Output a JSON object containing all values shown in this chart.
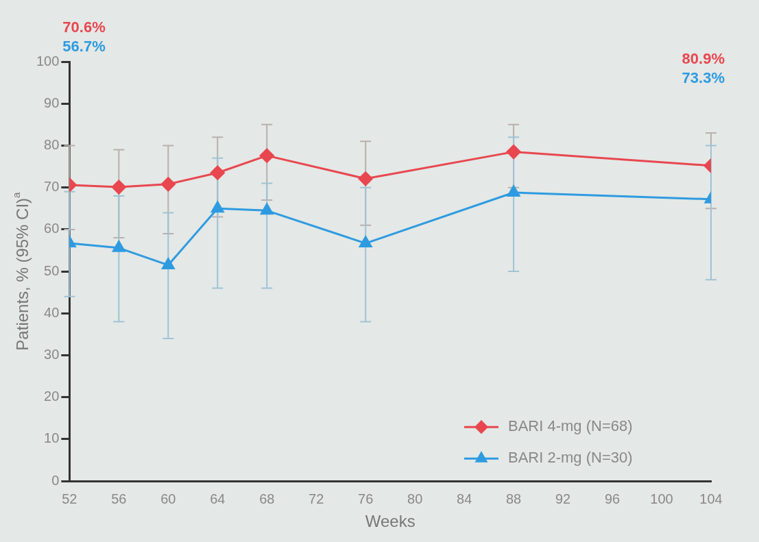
{
  "chart_data": {
    "type": "line",
    "xlabel": "Weeks",
    "ylabel": "Patients, % (95% CI)$^{a}$",
    "x": [
      52,
      56,
      60,
      64,
      68,
      76,
      88,
      104
    ],
    "xlim": [
      52,
      104
    ],
    "xticks": [
      52,
      56,
      60,
      64,
      68,
      72,
      76,
      80,
      84,
      88,
      92,
      96,
      100,
      104
    ],
    "ylim": [
      0,
      100
    ],
    "yticks": [
      0,
      10,
      20,
      30,
      40,
      50,
      60,
      70,
      80,
      90,
      100
    ],
    "grid": false,
    "legend": "bottom right",
    "line_style": "solid",
    "series": [
      {
        "name": "BARI 4-mg (N=68)",
        "color": "#e8474f",
        "marker": "diamond",
        "values": [
          70.6,
          70.1,
          70.8,
          73.5,
          77.6,
          72.1,
          78.5,
          75.2
        ],
        "errors": [
          [
            60,
            80
          ],
          [
            58,
            79
          ],
          [
            59,
            80
          ],
          [
            63,
            82
          ],
          [
            67,
            85
          ],
          [
            61,
            81
          ],
          [
            70,
            85
          ],
          [
            65,
            83
          ]
        ]
      },
      {
        "name": "BARI 2-mg (N=30)",
        "color": "#2e9be0",
        "marker": "triangle",
        "values": [
          56.7,
          55.6,
          51.5,
          65,
          64.5,
          56.7,
          68.8,
          67.2
        ],
        "errors": [
          [
            44,
            69
          ],
          [
            38,
            68
          ],
          [
            34,
            64
          ],
          [
            46,
            77
          ],
          [
            46,
            71
          ],
          [
            38,
            70
          ],
          [
            50,
            82
          ],
          [
            48,
            80
          ]
        ]
      }
    ],
    "annotations": [
      "70.6%",
      "56.7%",
      "80.9%",
      "73.3%"
    ]
  }
}
